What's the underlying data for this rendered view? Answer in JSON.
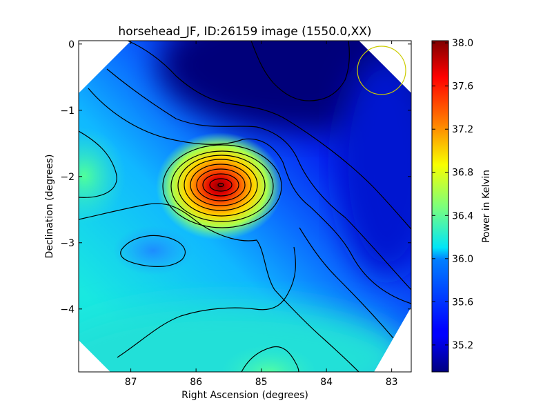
{
  "chart_data": {
    "type": "heatmap",
    "title": "horsehead_JF, ID:26159 image (1550.0,XX)",
    "xlabel": "Right Ascension (degrees)",
    "ylabel": "Declination (degrees)",
    "xlim": [
      87.8,
      82.7
    ],
    "ylim": [
      -4.95,
      0.05
    ],
    "x_ticks": [
      "87",
      "86",
      "85",
      "84",
      "83"
    ],
    "x_tick_values": [
      87,
      86,
      85,
      84,
      83
    ],
    "y_ticks": [
      "0",
      "−1",
      "−2",
      "−3",
      "−4"
    ],
    "y_tick_values": [
      0,
      -1,
      -2,
      -3,
      -4
    ],
    "colorbar": {
      "label": "Power in Kelvin",
      "range": [
        34.95,
        38.02
      ],
      "ticks": [
        "38.0",
        "37.6",
        "37.2",
        "36.8",
        "36.4",
        "36.0",
        "35.6",
        "35.2"
      ],
      "tick_values": [
        38.0,
        37.6,
        37.2,
        36.8,
        36.4,
        36.0,
        35.6,
        35.2
      ],
      "colormap": "jet"
    },
    "features": [
      {
        "kind": "peak",
        "ra": 85.57,
        "dec": -2.15,
        "value": 38.0
      },
      {
        "kind": "high",
        "ra": 87.7,
        "dec": -2.0,
        "value": 36.5
      },
      {
        "kind": "high",
        "ra": 84.7,
        "dec": -4.85,
        "value": 36.4
      },
      {
        "kind": "low",
        "ra": 84.4,
        "dec": -0.2,
        "value": 35.0
      },
      {
        "kind": "local-min",
        "ra": 86.5,
        "dec": -3.1,
        "value": 35.85
      }
    ],
    "beam_circle": {
      "ra": 83.2,
      "dec": -0.4,
      "radius_deg": 0.37,
      "color": "#cccc00"
    },
    "grid": false
  }
}
